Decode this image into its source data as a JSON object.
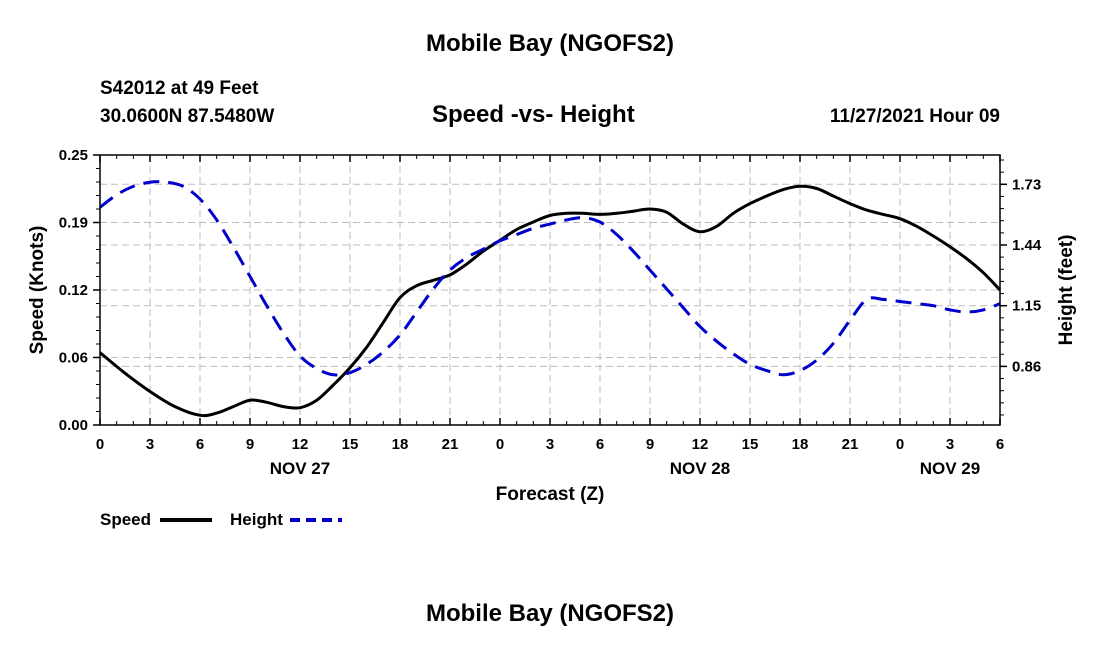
{
  "page": {
    "title_top": "Mobile Bay (NGOFS2)",
    "title_bottom": "Mobile Bay (NGOFS2)",
    "station": "S42012 at 49 Feet",
    "coords": "30.0600N  87.5480W",
    "date_label": "11/27/2021 Hour 09"
  },
  "chart_data": {
    "type": "line",
    "title": "Speed -vs- Height",
    "xlabel": "Forecast (Z)",
    "ylabel_left": "Speed (Knots)",
    "ylabel_right": "Height (feet)",
    "x_hours_from_start": [
      0,
      3,
      6,
      9,
      12,
      15,
      18,
      21,
      24,
      27,
      30,
      33,
      36,
      39,
      42,
      45,
      48,
      51,
      54
    ],
    "x_tick_labels": [
      "0",
      "3",
      "6",
      "9",
      "12",
      "15",
      "18",
      "21",
      "0",
      "3",
      "6",
      "9",
      "12",
      "15",
      "18",
      "21",
      "0",
      "3",
      "6"
    ],
    "day_labels": [
      {
        "label": "NOV 27",
        "hour": 12
      },
      {
        "label": "NOV 28",
        "hour": 36
      },
      {
        "label": "NOV 29",
        "hour": 51
      }
    ],
    "xlim": [
      0,
      54
    ],
    "ylim_left": [
      0,
      0.25
    ],
    "yticks_left": [
      "0.00",
      "0.06",
      "0.12",
      "0.19",
      "0.25"
    ],
    "ylim_right": [
      0.58,
      1.87
    ],
    "yticks_right": [
      {
        "label": "0.86",
        "value": 0.86
      },
      {
        "label": "1.15",
        "value": 1.15
      },
      {
        "label": "1.44",
        "value": 1.44
      },
      {
        "label": "1.73",
        "value": 1.73
      }
    ],
    "grid": true,
    "legend_position": "bottom-left",
    "series": [
      {
        "name": "Speed",
        "axis": "left",
        "color": "#000000",
        "dash": "solid",
        "x": [
          0,
          1.5,
          3,
          4.5,
          6,
          7,
          8,
          9,
          10,
          11,
          12,
          13,
          14,
          15,
          16,
          17,
          18,
          19,
          20,
          21,
          22,
          23,
          24,
          25,
          26,
          27,
          28,
          29,
          30,
          31,
          32,
          33,
          34,
          35,
          36,
          37,
          38,
          39,
          40,
          41,
          42,
          43,
          44,
          45,
          46,
          47,
          48,
          49,
          50,
          51,
          52,
          53,
          54
        ],
        "values": [
          0.067,
          0.048,
          0.031,
          0.017,
          0.009,
          0.011,
          0.017,
          0.023,
          0.021,
          0.017,
          0.016,
          0.023,
          0.037,
          0.053,
          0.072,
          0.095,
          0.118,
          0.129,
          0.134,
          0.139,
          0.149,
          0.161,
          0.171,
          0.181,
          0.188,
          0.194,
          0.196,
          0.196,
          0.195,
          0.196,
          0.198,
          0.2,
          0.197,
          0.186,
          0.179,
          0.184,
          0.196,
          0.205,
          0.212,
          0.218,
          0.221,
          0.219,
          0.212,
          0.205,
          0.199,
          0.195,
          0.191,
          0.184,
          0.175,
          0.165,
          0.154,
          0.141,
          0.125
        ]
      },
      {
        "name": "Height",
        "axis": "right",
        "color": "#0000cc",
        "dash": "dashed",
        "x": [
          0,
          1,
          2,
          3,
          4,
          5,
          6,
          7,
          8,
          9,
          10,
          11,
          12,
          13,
          14,
          15,
          16,
          17,
          18,
          19,
          20,
          21,
          22,
          23,
          24,
          25,
          26,
          27,
          28,
          29,
          30,
          31,
          32,
          33,
          34,
          35,
          36,
          37,
          38,
          39,
          40,
          41,
          42,
          43,
          44,
          45,
          46,
          47,
          48,
          49,
          50,
          51,
          52,
          53,
          54
        ],
        "values": [
          1.62,
          1.68,
          1.72,
          1.74,
          1.74,
          1.72,
          1.66,
          1.56,
          1.43,
          1.29,
          1.15,
          1.02,
          0.91,
          0.85,
          0.82,
          0.83,
          0.87,
          0.93,
          1.01,
          1.12,
          1.23,
          1.32,
          1.38,
          1.42,
          1.46,
          1.49,
          1.52,
          1.54,
          1.56,
          1.57,
          1.55,
          1.49,
          1.41,
          1.32,
          1.23,
          1.14,
          1.05,
          0.98,
          0.92,
          0.87,
          0.84,
          0.82,
          0.84,
          0.89,
          0.97,
          1.08,
          1.18,
          1.18,
          1.17,
          1.16,
          1.15,
          1.13,
          1.12,
          1.13,
          1.16
        ]
      }
    ]
  }
}
